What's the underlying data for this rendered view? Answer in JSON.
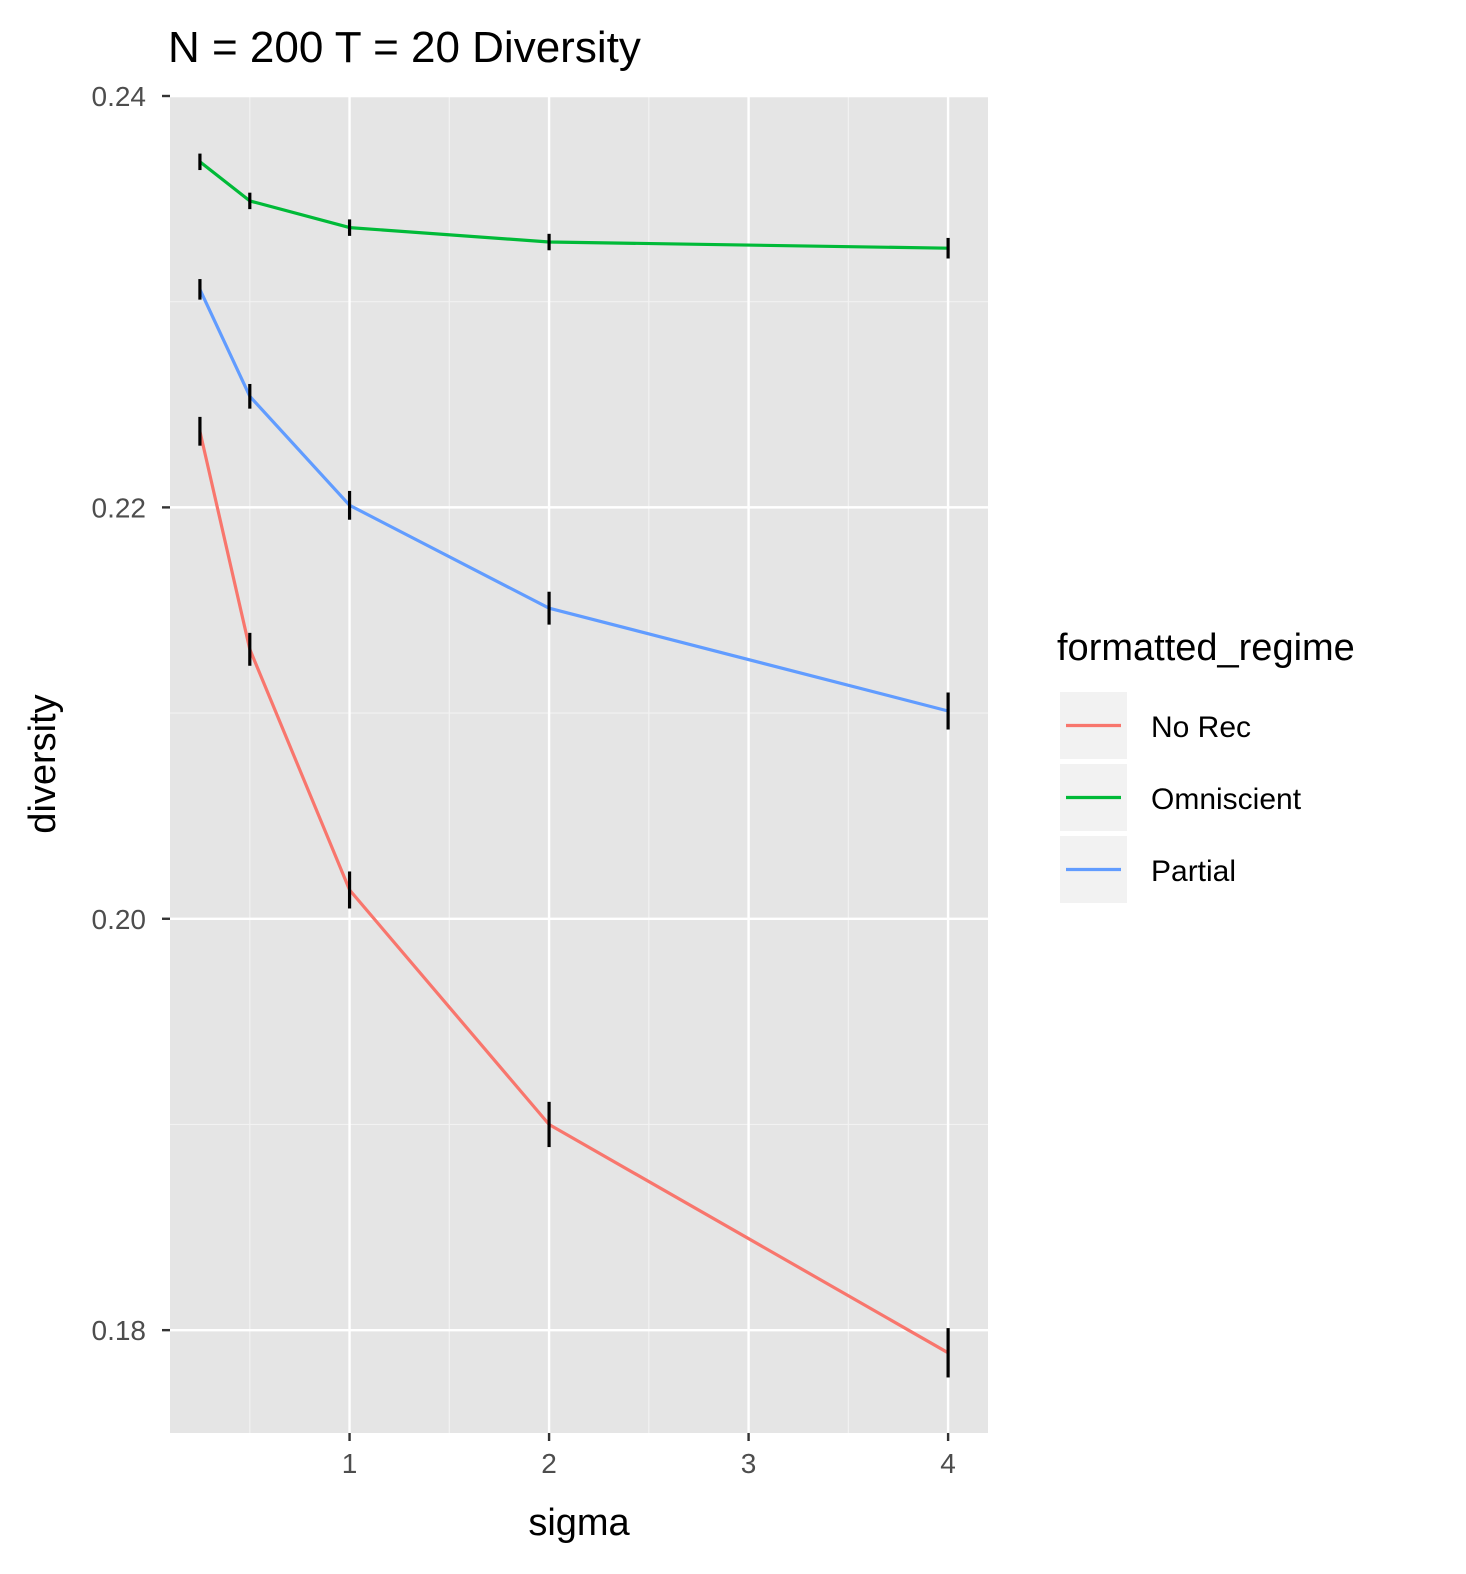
{
  "chart_data": {
    "type": "line",
    "title": "N = 200 T = 20 Diversity",
    "xlabel": "sigma",
    "ylabel": "diversity",
    "xlim": [
      0.1,
      4.2
    ],
    "ylim": [
      0.175,
      0.24
    ],
    "x_ticks": [
      {
        "value": 1,
        "label": "1"
      },
      {
        "value": 2,
        "label": "2"
      },
      {
        "value": 3,
        "label": "3"
      },
      {
        "value": 4,
        "label": "4"
      }
    ],
    "y_ticks": [
      {
        "value": 0.18,
        "label": "0.18"
      },
      {
        "value": 0.2,
        "label": "0.20"
      },
      {
        "value": 0.22,
        "label": "0.22"
      },
      {
        "value": 0.24,
        "label": "0.24"
      }
    ],
    "x_minor_grid": [
      0.5,
      1.5,
      2.5,
      3.5
    ],
    "y_minor_grid": [
      0.19,
      0.21,
      0.23
    ],
    "grid": true,
    "background": "#e5e5e5",
    "legend": {
      "title": "formatted_regime",
      "placement": "right"
    },
    "series": [
      {
        "name": "No Rec",
        "color": "#f8766d",
        "x": [
          0.25,
          0.5,
          1,
          2,
          4
        ],
        "y": [
          0.2237,
          0.2131,
          0.2014,
          0.19,
          0.1789
        ],
        "error": [
          0.0007,
          0.0008,
          0.0009,
          0.0011,
          0.0012
        ]
      },
      {
        "name": "Omniscient",
        "color": "#00ba38",
        "x": [
          0.25,
          0.5,
          1,
          2,
          4
        ],
        "y": [
          0.2368,
          0.2349,
          0.2336,
          0.2329,
          0.2326
        ],
        "error": [
          0.0004,
          0.0004,
          0.0004,
          0.0004,
          0.0005
        ]
      },
      {
        "name": "Partial",
        "color": "#619cff",
        "x": [
          0.25,
          0.5,
          1,
          2,
          4
        ],
        "y": [
          0.2306,
          0.2254,
          0.2201,
          0.2151,
          0.2101
        ],
        "error": [
          0.0005,
          0.0006,
          0.0007,
          0.0008,
          0.0009
        ]
      }
    ]
  }
}
